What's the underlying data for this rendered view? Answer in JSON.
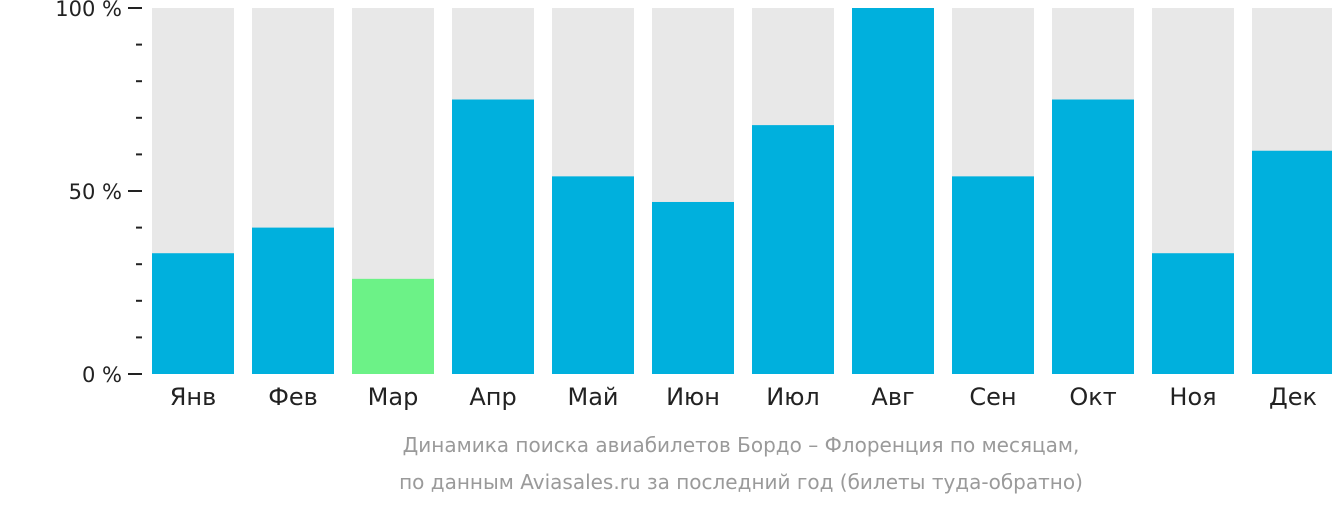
{
  "chart_data": {
    "type": "bar",
    "categories": [
      "Янв",
      "Фев",
      "Мар",
      "Апр",
      "Май",
      "Июн",
      "Июл",
      "Авг",
      "Сен",
      "Окт",
      "Ноя",
      "Дек"
    ],
    "values": [
      33,
      40,
      26,
      75,
      54,
      47,
      68,
      100,
      54,
      75,
      33,
      61
    ],
    "highlight_index": 2,
    "ylim": [
      0,
      100
    ],
    "yticks": [
      {
        "value": 0,
        "label": "0 %"
      },
      {
        "value": 50,
        "label": "50 %"
      },
      {
        "value": 100,
        "label": "100 %"
      }
    ],
    "minor_tick_step": 10,
    "colors": {
      "bar": "#00b0dd",
      "highlight": "#6cf287",
      "background_bar": "#e8e8e8",
      "axis": "#222222"
    },
    "caption_lines": [
      "Динамика поиска авиабилетов Бордо – Флоренция по месяцам,",
      "по данным Aviasales.ru за последний год (билеты туда-обратно)"
    ],
    "xlabel": "",
    "ylabel": "",
    "grid": false,
    "legend": "none"
  }
}
